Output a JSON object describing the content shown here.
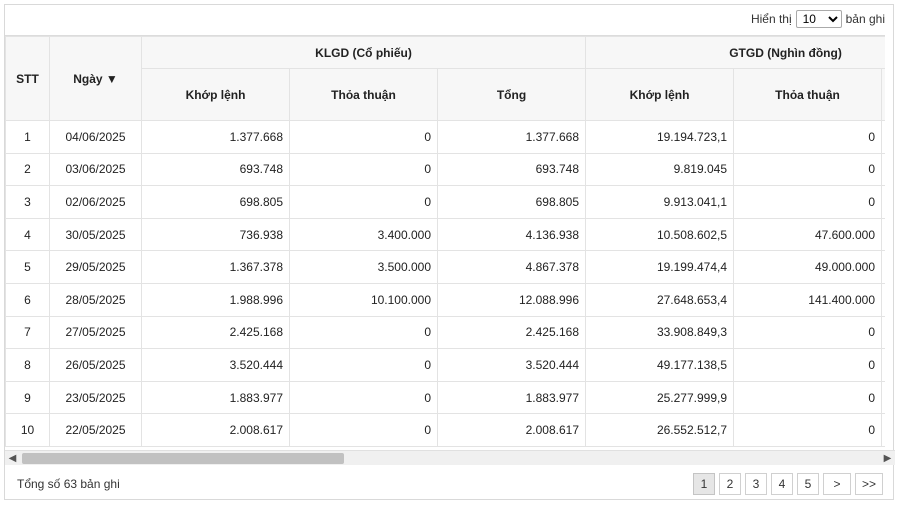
{
  "topbar": {
    "show_label": "Hiển thị",
    "page_size": "10",
    "records_label": "bản ghi"
  },
  "table": {
    "headers": {
      "stt": "STT",
      "date": "Ngày ▼",
      "klgd_group": "KLGD (Cổ phiếu)",
      "gtgd_group": "GTGD (Nghìn đồng)",
      "klgd_match": "Khớp lệnh",
      "klgd_deal": "Thỏa thuận",
      "klgd_total": "Tổng",
      "gtgd_match": "Khớp lệnh",
      "gtgd_deal": "Thỏa thuận"
    },
    "rows": [
      {
        "stt": "1",
        "date": "04/06/2025",
        "kl_match": "1.377.668",
        "kl_deal": "0",
        "kl_total": "1.377.668",
        "gt_match": "19.194.723,1",
        "gt_deal": "0"
      },
      {
        "stt": "2",
        "date": "03/06/2025",
        "kl_match": "693.748",
        "kl_deal": "0",
        "kl_total": "693.748",
        "gt_match": "9.819.045",
        "gt_deal": "0"
      },
      {
        "stt": "3",
        "date": "02/06/2025",
        "kl_match": "698.805",
        "kl_deal": "0",
        "kl_total": "698.805",
        "gt_match": "9.913.041,1",
        "gt_deal": "0"
      },
      {
        "stt": "4",
        "date": "30/05/2025",
        "kl_match": "736.938",
        "kl_deal": "3.400.000",
        "kl_total": "4.136.938",
        "gt_match": "10.508.602,5",
        "gt_deal": "47.600.000"
      },
      {
        "stt": "5",
        "date": "29/05/2025",
        "kl_match": "1.367.378",
        "kl_deal": "3.500.000",
        "kl_total": "4.867.378",
        "gt_match": "19.199.474,4",
        "gt_deal": "49.000.000"
      },
      {
        "stt": "6",
        "date": "28/05/2025",
        "kl_match": "1.988.996",
        "kl_deal": "10.100.000",
        "kl_total": "12.088.996",
        "gt_match": "27.648.653,4",
        "gt_deal": "141.400.000"
      },
      {
        "stt": "7",
        "date": "27/05/2025",
        "kl_match": "2.425.168",
        "kl_deal": "0",
        "kl_total": "2.425.168",
        "gt_match": "33.908.849,3",
        "gt_deal": "0"
      },
      {
        "stt": "8",
        "date": "26/05/2025",
        "kl_match": "3.520.444",
        "kl_deal": "0",
        "kl_total": "3.520.444",
        "gt_match": "49.177.138,5",
        "gt_deal": "0"
      },
      {
        "stt": "9",
        "date": "23/05/2025",
        "kl_match": "1.883.977",
        "kl_deal": "0",
        "kl_total": "1.883.977",
        "gt_match": "25.277.999,9",
        "gt_deal": "0"
      },
      {
        "stt": "10",
        "date": "22/05/2025",
        "kl_match": "2.008.617",
        "kl_deal": "0",
        "kl_total": "2.008.617",
        "gt_match": "26.552.512,7",
        "gt_deal": "0"
      }
    ]
  },
  "scrollbar": {
    "left_icon": "chevron-left-icon",
    "right_icon": "chevron-right-icon",
    "position_fraction": 0.0,
    "visible_fraction": 0.37
  },
  "footer": {
    "total_text": "Tổng số 63 bản ghi",
    "pages": [
      "1",
      "2",
      "3",
      "4",
      "5"
    ],
    "current_page": "1",
    "next_label": ">",
    "last_label": ">>"
  }
}
